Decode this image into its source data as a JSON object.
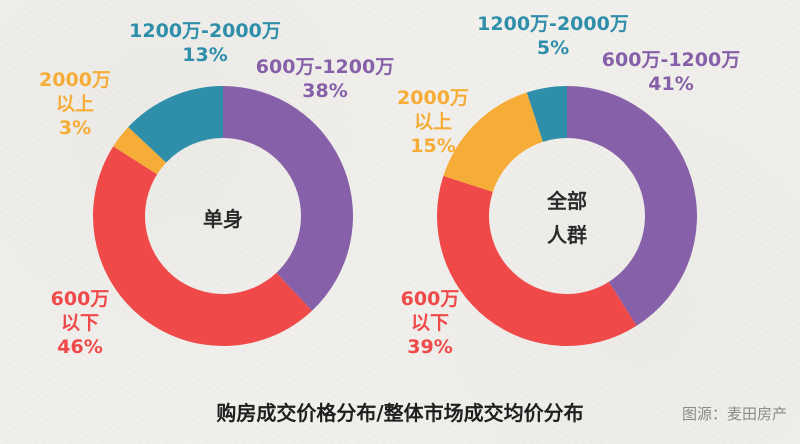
{
  "title": "购房成交价格分布/整体市场成交均价分布",
  "source": "图源：麦田房产",
  "colors": {
    "600万以下": "#f0494a",
    "600万-1200万": "#8660a8",
    "1200万-2000万": "#2f8ea9",
    "2000万以上": "#f6ad38"
  },
  "chart_data": [
    {
      "type": "pie",
      "center_label": [
        "单身"
      ],
      "slices": [
        {
          "name": "600万-1200万",
          "label_lines": [
            "600万-1200万",
            "38%"
          ],
          "value": 38
        },
        {
          "name": "600万以下",
          "label_lines": [
            "600万",
            "以下",
            "46%"
          ],
          "value": 46
        },
        {
          "name": "2000万以上",
          "label_lines": [
            "2000万",
            "以上",
            "3%"
          ],
          "value": 3
        },
        {
          "name": "1200万-2000万",
          "label_lines": [
            "1200万-2000万",
            "13%"
          ],
          "value": 13
        }
      ]
    },
    {
      "type": "pie",
      "center_label": [
        "全部",
        "人群"
      ],
      "slices": [
        {
          "name": "600万-1200万",
          "label_lines": [
            "600万-1200万",
            "41%"
          ],
          "value": 41
        },
        {
          "name": "600万以下",
          "label_lines": [
            "600万",
            "以下",
            "39%"
          ],
          "value": 39
        },
        {
          "name": "2000万以上",
          "label_lines": [
            "2000万",
            "以上",
            "15%"
          ],
          "value": 15
        },
        {
          "name": "1200万-2000万",
          "label_lines": [
            "1200万-2000万",
            "5%"
          ],
          "value": 5
        }
      ]
    }
  ]
}
